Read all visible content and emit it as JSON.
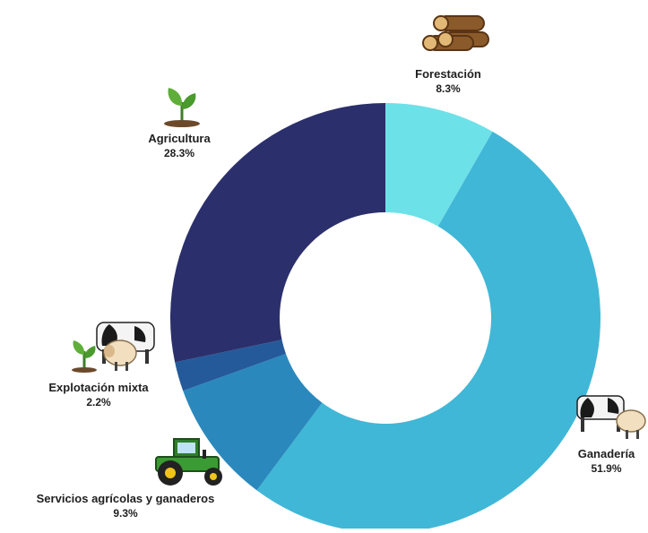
{
  "chart_data": {
    "type": "pie",
    "variant": "donut",
    "title": "",
    "slices": [
      {
        "label": "Forestación",
        "value": 8.3,
        "value_label": "8.3%",
        "color": "#6de1e8",
        "icon": "logs-icon"
      },
      {
        "label": "Ganadería",
        "value": 51.9,
        "value_label": "51.9%",
        "color": "#40b7d6",
        "icon": "cow-sheep-icon"
      },
      {
        "label": "Servicios agrícolas y ganaderos",
        "value": 9.3,
        "value_label": "9.3%",
        "color": "#2a88bc",
        "icon": "tractor-icon"
      },
      {
        "label": "Explotación mixta",
        "value": 2.2,
        "value_label": "2.2%",
        "color": "#245a9a",
        "icon": "sprout-cow-sheep-icon"
      },
      {
        "label": "Agricultura",
        "value": 28.3,
        "value_label": "28.3%",
        "color": "#2b2f6b",
        "icon": "sprout-icon"
      }
    ],
    "start": "top",
    "direction": "clockwise",
    "legend": "none",
    "labels": "outside"
  }
}
